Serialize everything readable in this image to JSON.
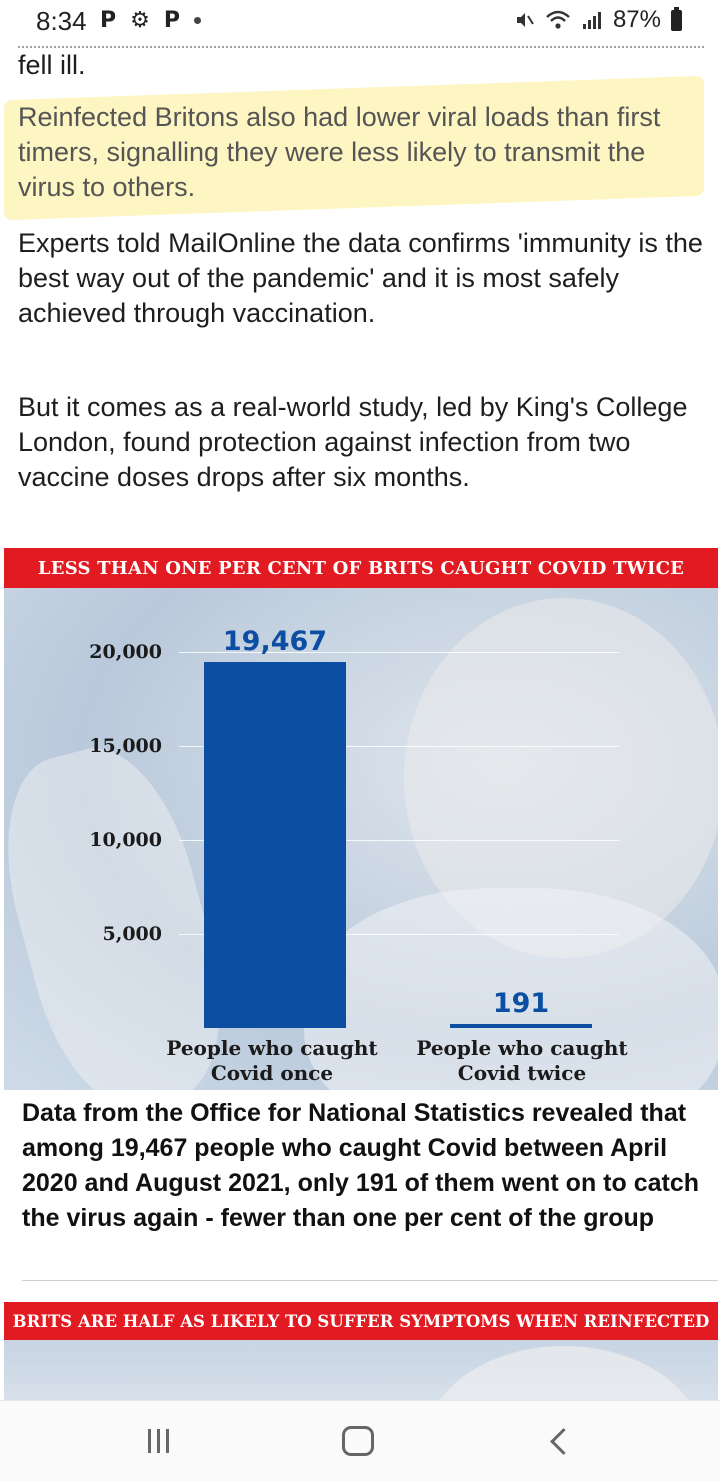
{
  "status_bar": {
    "time": "8:34",
    "left_icons": [
      "P",
      "⚙",
      "P"
    ],
    "battery_text": "87%",
    "icons": [
      "mute-icon",
      "wifi-icon",
      "signal-icon",
      "battery-icon"
    ]
  },
  "article": {
    "paragraphs": [
      "fell ill.",
      "Reinfected Britons also had lower viral loads than first timers, signalling they were less likely to transmit the virus to others.",
      "Experts told MailOnline the data confirms 'immunity is the best way out of the pandemic' and it is most safely achieved through vaccination.",
      "But it comes as a real-world study, led by King's College London, found protection against infection from two vaccine doses drops after six months."
    ],
    "highlight_color": "#fae878"
  },
  "chart_data": {
    "type": "bar",
    "title": "LESS THAN ONE PER CENT OF BRITS CAUGHT COVID TWICE",
    "categories": [
      "People who caught Covid once",
      "People who caught Covid twice"
    ],
    "values": [
      19467,
      191
    ],
    "value_labels": [
      "19,467",
      "191"
    ],
    "yticks": [
      "20,000",
      "15,000",
      "10,000",
      "5,000"
    ],
    "ytick_values": [
      20000,
      15000,
      10000,
      5000
    ],
    "ylim": [
      0,
      20000
    ],
    "bar_color": "#0b4ea2",
    "banner_color": "#e21a22",
    "grid": true
  },
  "caption": "Data from the Office for National Statistics revealed that among 19,467 people who caught Covid between April 2020 and August 2021, only 191 of them went on to catch the virus again - fewer than one per cent of the group",
  "next_graphic": {
    "title": "BRITS ARE HALF AS LIKELY TO SUFFER SYMPTOMS WHEN REINFECTED"
  },
  "nav_bar": {
    "buttons": [
      "recents-icon",
      "home-icon",
      "back-icon"
    ]
  }
}
